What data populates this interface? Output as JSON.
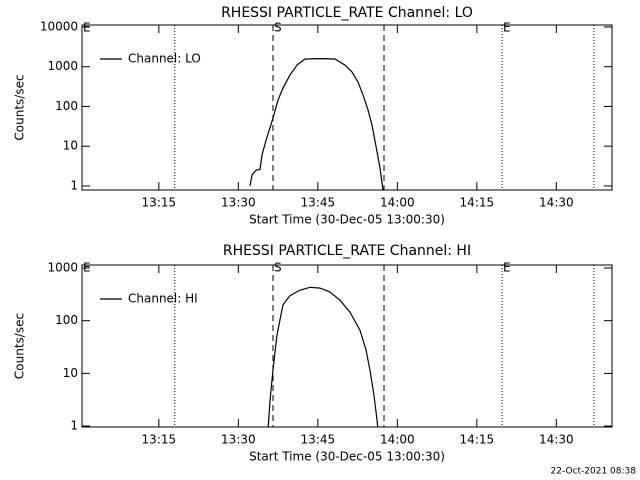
{
  "chart_data": [
    {
      "type": "line",
      "title": "RHESSI PARTICLE_RATE Channel: LO",
      "xlabel": "Start Time (30-Dec-05 13:00:30)",
      "ylabel": "Counts/sec",
      "x": [
        "13:32:12",
        "13:32:35",
        "13:33:20",
        "13:34:05",
        "13:34:28",
        "13:35:13",
        "13:35:58",
        "13:36:32",
        "13:37:29",
        "13:38:25",
        "13:39:45",
        "13:41:04",
        "13:42:35",
        "13:45:25",
        "13:48:14",
        "13:50:07",
        "13:51:26",
        "13:52:35",
        "13:53:31",
        "13:54:28",
        "13:55:13",
        "13:55:58",
        "13:56:44",
        "13:57:17"
      ],
      "series": [
        {
          "name": "Channel: LO",
          "color": "#000000",
          "values": [
            1,
            1.9,
            2.5,
            2.6,
            6,
            14,
            29,
            51,
            145,
            290,
            620,
            1100,
            1560,
            1600,
            1560,
            1100,
            740,
            410,
            195,
            82,
            34,
            10,
            2.8,
            0.8
          ]
        }
      ],
      "xlim": [
        "13:00:30",
        "14:40:30"
      ],
      "xticks": [
        "13:15",
        "13:30",
        "13:45",
        "14:00",
        "14:15",
        "14:30"
      ],
      "ylim": [
        0.79,
        11200
      ],
      "yticks": [
        1,
        10,
        100,
        1000,
        10000
      ],
      "log_y": true,
      "legend": "upper left",
      "markers": [
        {
          "x": "13:00:30",
          "style": "dotted",
          "label": "E"
        },
        {
          "x": "13:18:00",
          "style": "dotted"
        },
        {
          "x": "13:36:32",
          "style": "dashed",
          "label": "S"
        },
        {
          "x": "13:57:29",
          "style": "dashed"
        },
        {
          "x": "14:19:45",
          "style": "dotted",
          "label": "E"
        },
        {
          "x": "14:37:06",
          "style": "dotted"
        }
      ]
    },
    {
      "type": "line",
      "title": "RHESSI PARTICLE_RATE Channel: HI",
      "xlabel": "Start Time (30-Dec-05 13:00:30)",
      "ylabel": "Counts/sec",
      "x": [
        "13:35:35",
        "13:35:58",
        "13:36:32",
        "13:37:17",
        "13:38:25",
        "13:39:45",
        "13:41:38",
        "13:43:31",
        "13:45:25",
        "13:47:17",
        "13:49:11",
        "13:51:04",
        "13:52:57",
        "13:54:05",
        "13:54:50",
        "13:55:35",
        "13:56:10",
        "13:56:21"
      ],
      "series": [
        {
          "name": "Channel: HI",
          "color": "#000000",
          "values": [
            0.8,
            3,
            11.5,
            53,
            200,
            300,
            380,
            430,
            415,
            350,
            245,
            145,
            66,
            28,
            11.5,
            3.9,
            1.3,
            0.84
          ]
        }
      ],
      "xlim": [
        "13:00:30",
        "14:40:30"
      ],
      "xticks": [
        "13:15",
        "13:30",
        "13:45",
        "14:00",
        "14:15",
        "14:30"
      ],
      "ylim": [
        0.96,
        1140
      ],
      "yticks": [
        1,
        10,
        100,
        1000
      ],
      "log_y": true,
      "legend": "upper left",
      "markers": [
        {
          "x": "13:00:30",
          "style": "dotted",
          "label": "E"
        },
        {
          "x": "13:18:00",
          "style": "dotted"
        },
        {
          "x": "13:36:32",
          "style": "dashed",
          "label": "S"
        },
        {
          "x": "13:57:29",
          "style": "dashed"
        },
        {
          "x": "14:19:45",
          "style": "dotted",
          "label": "E"
        },
        {
          "x": "14:37:06",
          "style": "dotted"
        }
      ]
    }
  ],
  "footer": "22-Oct-2021 08:38"
}
